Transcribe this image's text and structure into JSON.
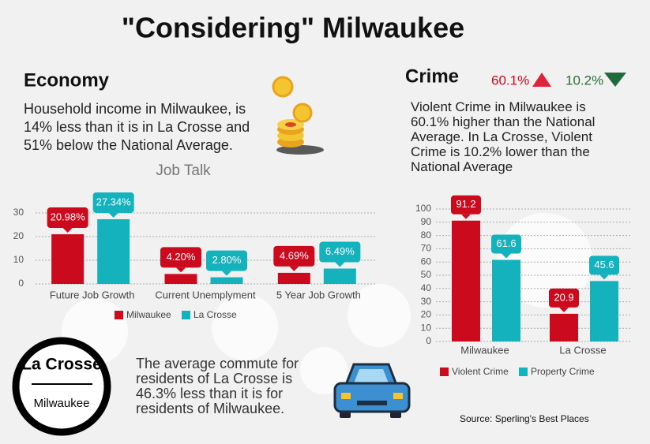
{
  "title": "\"Considering\" Milwaukee",
  "economy": {
    "heading": "Economy",
    "text": "Household income in Milwaukee, is 14% less than it is in La Crosse and 51% below the National Average."
  },
  "crime": {
    "heading": "Crime",
    "indicators": [
      "60.1%",
      "10.2%"
    ],
    "text": "Violent Crime in Milwaukee is 60.1% higher than the National Average. In La Crosse, Violent Crime is 10.2% lower than the National Average"
  },
  "commute": {
    "badge_top": "La Crosse",
    "badge_bottom": "Milwaukee",
    "text": "The average commute for residents of La Crosse is 46.3% less than it is for residents of Milwaukee."
  },
  "source": "Source: Sperling's Best Places",
  "chart_data": [
    {
      "type": "bar",
      "title": "Job Talk",
      "categories": [
        "Future Job Growth",
        "Current Unemplyment",
        "5 Year Job Growth"
      ],
      "series": [
        {
          "name": "Milwaukee",
          "color": "#cc0a1e",
          "values": [
            20.98,
            4.2,
            4.69
          ],
          "value_labels": [
            "20.98%",
            "4.20%",
            "4.69%"
          ]
        },
        {
          "name": "La Crosse",
          "color": "#13b2bd",
          "values": [
            27.34,
            2.8,
            6.49
          ],
          "value_labels": [
            "27.34%",
            "2.80%",
            "6.49%"
          ]
        }
      ],
      "ylim": [
        0,
        30
      ],
      "yticks": [
        0,
        10,
        20,
        30
      ],
      "grid": true
    },
    {
      "type": "bar",
      "categories": [
        "Milwaukee",
        "La Crosse"
      ],
      "series": [
        {
          "name": "Violent Crime",
          "color": "#cc0a1e",
          "values": [
            91.2,
            20.9
          ]
        },
        {
          "name": "Property Crime",
          "color": "#13b2bd",
          "values": [
            61.6,
            45.6
          ]
        }
      ],
      "ylim": [
        0,
        100
      ],
      "yticks": [
        0,
        10,
        20,
        30,
        40,
        50,
        60,
        70,
        80,
        90,
        100
      ],
      "grid": true
    }
  ]
}
